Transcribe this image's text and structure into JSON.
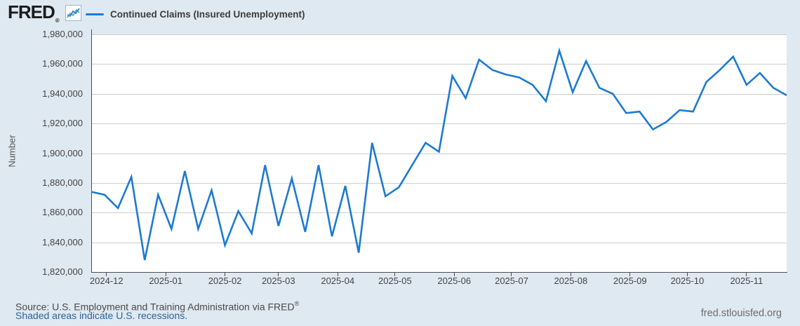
{
  "header": {
    "logo_text": "FRED",
    "registered_mark": "®",
    "legend_label": "Continued Claims (Insured Unemployment)"
  },
  "chart_data": {
    "type": "line",
    "title": "Continued Claims (Insured Unemployment)",
    "ylabel": "Number",
    "line_color": "#1d7ad2",
    "grid": true,
    "legend_position": "top-left",
    "ylim": [
      1820000,
      1980000
    ],
    "ytick_step": 20000,
    "y_ticks": [
      "1,980,000",
      "1,960,000",
      "1,940,000",
      "1,920,000",
      "1,900,000",
      "1,880,000",
      "1,860,000",
      "1,840,000",
      "1,820,000"
    ],
    "x_ticks": [
      {
        "label": "2024-12",
        "date": "2024-12-01"
      },
      {
        "label": "2025-01",
        "date": "2025-01-01"
      },
      {
        "label": "2025-02",
        "date": "2025-02-01"
      },
      {
        "label": "2025-03",
        "date": "2025-03-01"
      },
      {
        "label": "2025-04",
        "date": "2025-04-01"
      },
      {
        "label": "2025-05",
        "date": "2025-05-01"
      },
      {
        "label": "2025-06",
        "date": "2025-06-01"
      },
      {
        "label": "2025-07",
        "date": "2025-07-01"
      },
      {
        "label": "2025-08",
        "date": "2025-08-01"
      },
      {
        "label": "2025-09",
        "date": "2025-09-01"
      },
      {
        "label": "2025-10",
        "date": "2025-10-01"
      },
      {
        "label": "2025-11",
        "date": "2025-11-01"
      }
    ],
    "x": [
      "2024-11-23",
      "2024-11-30",
      "2024-12-07",
      "2024-12-14",
      "2024-12-21",
      "2024-12-28",
      "2025-01-04",
      "2025-01-11",
      "2025-01-18",
      "2025-01-25",
      "2025-02-01",
      "2025-02-08",
      "2025-02-15",
      "2025-02-22",
      "2025-03-01",
      "2025-03-08",
      "2025-03-15",
      "2025-03-22",
      "2025-03-29",
      "2025-04-05",
      "2025-04-12",
      "2025-04-19",
      "2025-04-26",
      "2025-05-03",
      "2025-05-10",
      "2025-05-17",
      "2025-05-24",
      "2025-05-31",
      "2025-06-07",
      "2025-06-14",
      "2025-06-21",
      "2025-06-28",
      "2025-07-05",
      "2025-07-12",
      "2025-07-19",
      "2025-07-26",
      "2025-08-02",
      "2025-08-09",
      "2025-08-16",
      "2025-08-23",
      "2025-08-30",
      "2025-09-06",
      "2025-09-13",
      "2025-09-20",
      "2025-09-27",
      "2025-10-04",
      "2025-10-11",
      "2025-10-18",
      "2025-10-25",
      "2025-11-01",
      "2025-11-08",
      "2025-11-15",
      "2025-11-22"
    ],
    "values": [
      1874000,
      1872000,
      1863000,
      1884000,
      1828000,
      1872000,
      1849000,
      1888000,
      1849000,
      1875000,
      1838000,
      1861000,
      1846000,
      1892000,
      1851000,
      1883000,
      1847000,
      1892000,
      1844000,
      1878000,
      1833000,
      1907000,
      1871000,
      1877000,
      1892000,
      1907000,
      1901000,
      1952000,
      1937000,
      1963000,
      1956000,
      1953000,
      1951000,
      1946000,
      1935000,
      1969000,
      1941000,
      1962000,
      1944000,
      1940000,
      1927000,
      1928000,
      1916000,
      1921000,
      1929000,
      1928000,
      1948000,
      1956000,
      1965000,
      1946000,
      1954000,
      1944000,
      1939000
    ]
  },
  "footer": {
    "source_text": "Source: U.S. Employment and Training Administration via FRED",
    "source_reg": "®",
    "recession_note": "Shaded areas indicate U.S. recessions.",
    "site_url": "fred.stlouisfed.org"
  }
}
